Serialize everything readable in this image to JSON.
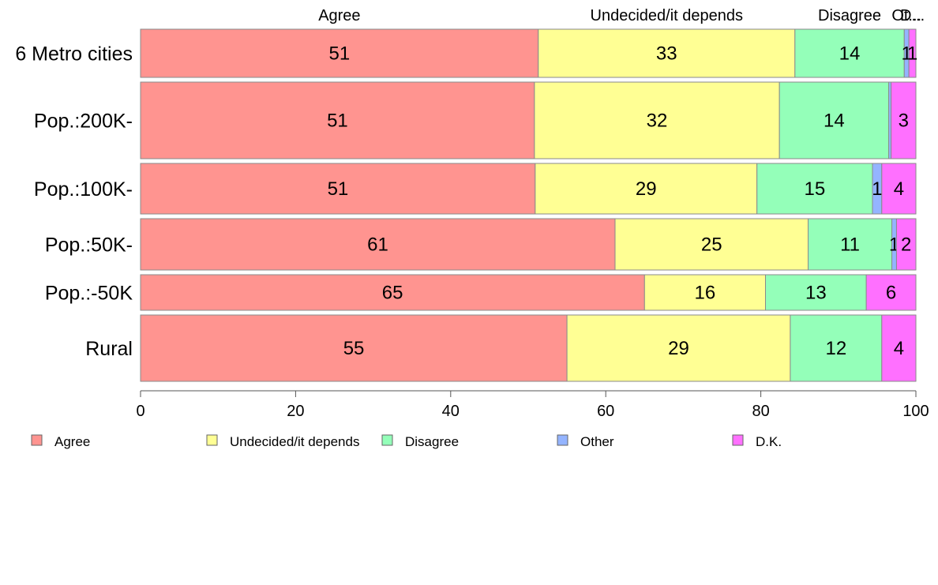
{
  "chart_data": {
    "type": "bar",
    "orientation": "horizontal",
    "stacked": true,
    "categories": [
      "6 Metro cities",
      "Pop.:200K-",
      "Pop.:100K-",
      "Pop.:50K-",
      "Pop.:-50K",
      "Rural"
    ],
    "top_labels": [
      "Agree",
      "Undecided/it depends",
      "Disagree",
      "Ot...",
      "D..."
    ],
    "series": [
      {
        "name": "Agree",
        "color": "#FF9490",
        "values": [
          51.3,
          50.8,
          50.9,
          61.2,
          65.0,
          55.0
        ],
        "labels": [
          "51",
          "51",
          "51",
          "61",
          "65",
          "55"
        ]
      },
      {
        "name": "Undecided/it depends",
        "color": "#FFFF94",
        "values": [
          33.1,
          31.6,
          28.6,
          24.9,
          15.6,
          28.8
        ],
        "labels": [
          "33",
          "32",
          "29",
          "25",
          "16",
          "29"
        ]
      },
      {
        "name": "Disagree",
        "color": "#94FFB9",
        "values": [
          14.1,
          14.1,
          14.9,
          10.8,
          13.0,
          11.8
        ],
        "labels": [
          "14",
          "14",
          "15",
          "11",
          "13",
          "12"
        ]
      },
      {
        "name": "Other",
        "color": "#94B4FF",
        "values": [
          0.6,
          0.3,
          1.2,
          0.6,
          0.0,
          0.0
        ],
        "labels": [
          "1",
          "",
          "1",
          "1",
          "",
          ""
        ]
      },
      {
        "name": "D.K.",
        "color": "#FF70FF",
        "values": [
          0.9,
          3.2,
          4.4,
          2.5,
          6.4,
          4.4
        ],
        "labels": [
          "1",
          "3",
          "4",
          "2",
          "6",
          "4"
        ]
      }
    ],
    "xlim": [
      0,
      100
    ],
    "x_ticks": [
      "0",
      "20",
      "40",
      "60",
      "80",
      "100"
    ],
    "legend_position": "bottom",
    "grid": false
  }
}
